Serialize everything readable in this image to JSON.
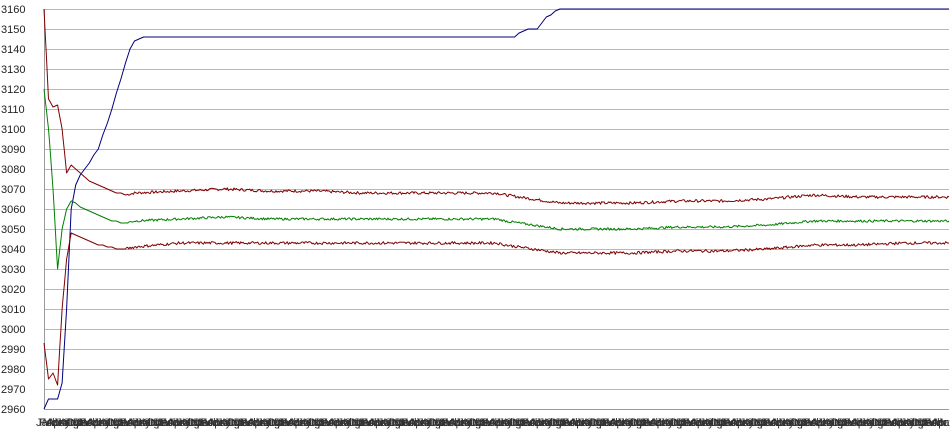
{
  "chart_data": {
    "type": "line",
    "title": "",
    "xlabel": "",
    "ylabel": "",
    "ylim": [
      2960,
      3160
    ],
    "y_ticks": [
      3160,
      3150,
      3140,
      3130,
      3120,
      3110,
      3100,
      3090,
      3080,
      3070,
      3060,
      3050,
      3040,
      3030,
      3020,
      3010,
      3000,
      2990,
      2980,
      2970,
      2960
    ],
    "x_tick_labels": [
      "Jan",
      "Feb",
      "Mar",
      "Apr",
      "May",
      "Jun",
      "Jul",
      "Aug",
      "Sep",
      "Oct",
      "Nov",
      "Dec"
    ],
    "x_tick_count": 270,
    "grid": true,
    "legend": "none",
    "series": [
      {
        "color": "#00007f",
        "points": [
          [
            0,
            2960
          ],
          [
            1,
            2965
          ],
          [
            3,
            2965
          ],
          [
            4,
            2973
          ],
          [
            5,
            3010
          ],
          [
            6,
            3060
          ],
          [
            7,
            3072
          ],
          [
            8,
            3077
          ],
          [
            9,
            3080
          ],
          [
            10,
            3083
          ],
          [
            11,
            3087
          ],
          [
            12,
            3090
          ],
          [
            13,
            3097
          ],
          [
            14,
            3103
          ],
          [
            15,
            3110
          ],
          [
            16,
            3118
          ],
          [
            17,
            3125
          ],
          [
            18,
            3133
          ],
          [
            19,
            3140
          ],
          [
            20,
            3144
          ],
          [
            21,
            3145
          ],
          [
            22,
            3146
          ],
          [
            30,
            3146
          ],
          [
            100,
            3146
          ],
          [
            104,
            3146
          ],
          [
            105,
            3148
          ],
          [
            107,
            3150
          ],
          [
            109,
            3150
          ],
          [
            110,
            3153
          ],
          [
            111,
            3156
          ],
          [
            112,
            3157
          ],
          [
            113,
            3159
          ],
          [
            114,
            3160
          ],
          [
            200,
            3160
          ]
        ]
      },
      {
        "color": "#7f0000",
        "noise": 0.7,
        "points": [
          [
            0,
            3160
          ],
          [
            1,
            3115
          ],
          [
            2,
            3111
          ],
          [
            3,
            3112
          ],
          [
            4,
            3100
          ],
          [
            5,
            3078
          ],
          [
            6,
            3082
          ],
          [
            7,
            3080
          ],
          [
            8,
            3078
          ],
          [
            9,
            3076
          ],
          [
            10,
            3074
          ],
          [
            11,
            3073
          ],
          [
            12,
            3072
          ],
          [
            13,
            3071
          ],
          [
            14,
            3070
          ],
          [
            15,
            3069
          ],
          [
            16,
            3068
          ],
          [
            17,
            3068
          ],
          [
            18,
            3067
          ],
          [
            20,
            3068
          ],
          [
            30,
            3069
          ],
          [
            40,
            3070
          ],
          [
            50,
            3069
          ],
          [
            60,
            3069
          ],
          [
            70,
            3068
          ],
          [
            80,
            3068
          ],
          [
            90,
            3068
          ],
          [
            100,
            3068
          ],
          [
            102,
            3067
          ],
          [
            105,
            3066
          ],
          [
            108,
            3065
          ],
          [
            111,
            3064
          ],
          [
            114,
            3063
          ],
          [
            120,
            3063
          ],
          [
            130,
            3063
          ],
          [
            140,
            3064
          ],
          [
            150,
            3064
          ],
          [
            160,
            3065
          ],
          [
            165,
            3066
          ],
          [
            170,
            3067
          ],
          [
            180,
            3066
          ],
          [
            190,
            3066
          ],
          [
            200,
            3066
          ]
        ]
      },
      {
        "color": "#007f00",
        "noise": 0.6,
        "points": [
          [
            0,
            3120
          ],
          [
            1,
            3100
          ],
          [
            2,
            3070
          ],
          [
            3,
            3030
          ],
          [
            4,
            3050
          ],
          [
            5,
            3060
          ],
          [
            6,
            3064
          ],
          [
            7,
            3063
          ],
          [
            8,
            3061
          ],
          [
            9,
            3060
          ],
          [
            10,
            3059
          ],
          [
            11,
            3058
          ],
          [
            12,
            3057
          ],
          [
            13,
            3056
          ],
          [
            14,
            3055
          ],
          [
            15,
            3054
          ],
          [
            16,
            3054
          ],
          [
            17,
            3053
          ],
          [
            18,
            3053
          ],
          [
            20,
            3054
          ],
          [
            30,
            3055
          ],
          [
            40,
            3056
          ],
          [
            50,
            3055
          ],
          [
            60,
            3055
          ],
          [
            70,
            3055
          ],
          [
            80,
            3055
          ],
          [
            90,
            3055
          ],
          [
            100,
            3055
          ],
          [
            102,
            3054
          ],
          [
            105,
            3053
          ],
          [
            108,
            3052
          ],
          [
            111,
            3051
          ],
          [
            114,
            3050
          ],
          [
            120,
            3050
          ],
          [
            130,
            3050
          ],
          [
            140,
            3051
          ],
          [
            150,
            3051
          ],
          [
            160,
            3052
          ],
          [
            165,
            3053
          ],
          [
            170,
            3054
          ],
          [
            180,
            3054
          ],
          [
            190,
            3054
          ],
          [
            200,
            3054
          ]
        ]
      },
      {
        "color": "#7f0000",
        "noise": 0.7,
        "points": [
          [
            0,
            2993
          ],
          [
            1,
            2975
          ],
          [
            2,
            2978
          ],
          [
            3,
            2972
          ],
          [
            4,
            3010
          ],
          [
            5,
            3035
          ],
          [
            6,
            3048
          ],
          [
            7,
            3047
          ],
          [
            8,
            3046
          ],
          [
            9,
            3045
          ],
          [
            10,
            3044
          ],
          [
            11,
            3043
          ],
          [
            12,
            3042
          ],
          [
            13,
            3042
          ],
          [
            14,
            3041
          ],
          [
            15,
            3041
          ],
          [
            16,
            3040
          ],
          [
            17,
            3040
          ],
          [
            18,
            3040
          ],
          [
            20,
            3041
          ],
          [
            30,
            3043
          ],
          [
            40,
            3043
          ],
          [
            50,
            3043
          ],
          [
            60,
            3043
          ],
          [
            70,
            3043
          ],
          [
            80,
            3043
          ],
          [
            90,
            3043
          ],
          [
            100,
            3043
          ],
          [
            102,
            3042
          ],
          [
            105,
            3041
          ],
          [
            108,
            3040
          ],
          [
            111,
            3039
          ],
          [
            114,
            3038
          ],
          [
            120,
            3038
          ],
          [
            130,
            3038
          ],
          [
            140,
            3039
          ],
          [
            150,
            3039
          ],
          [
            160,
            3040
          ],
          [
            165,
            3041
          ],
          [
            170,
            3042
          ],
          [
            180,
            3042
          ],
          [
            190,
            3043
          ],
          [
            200,
            3043
          ]
        ]
      }
    ]
  }
}
